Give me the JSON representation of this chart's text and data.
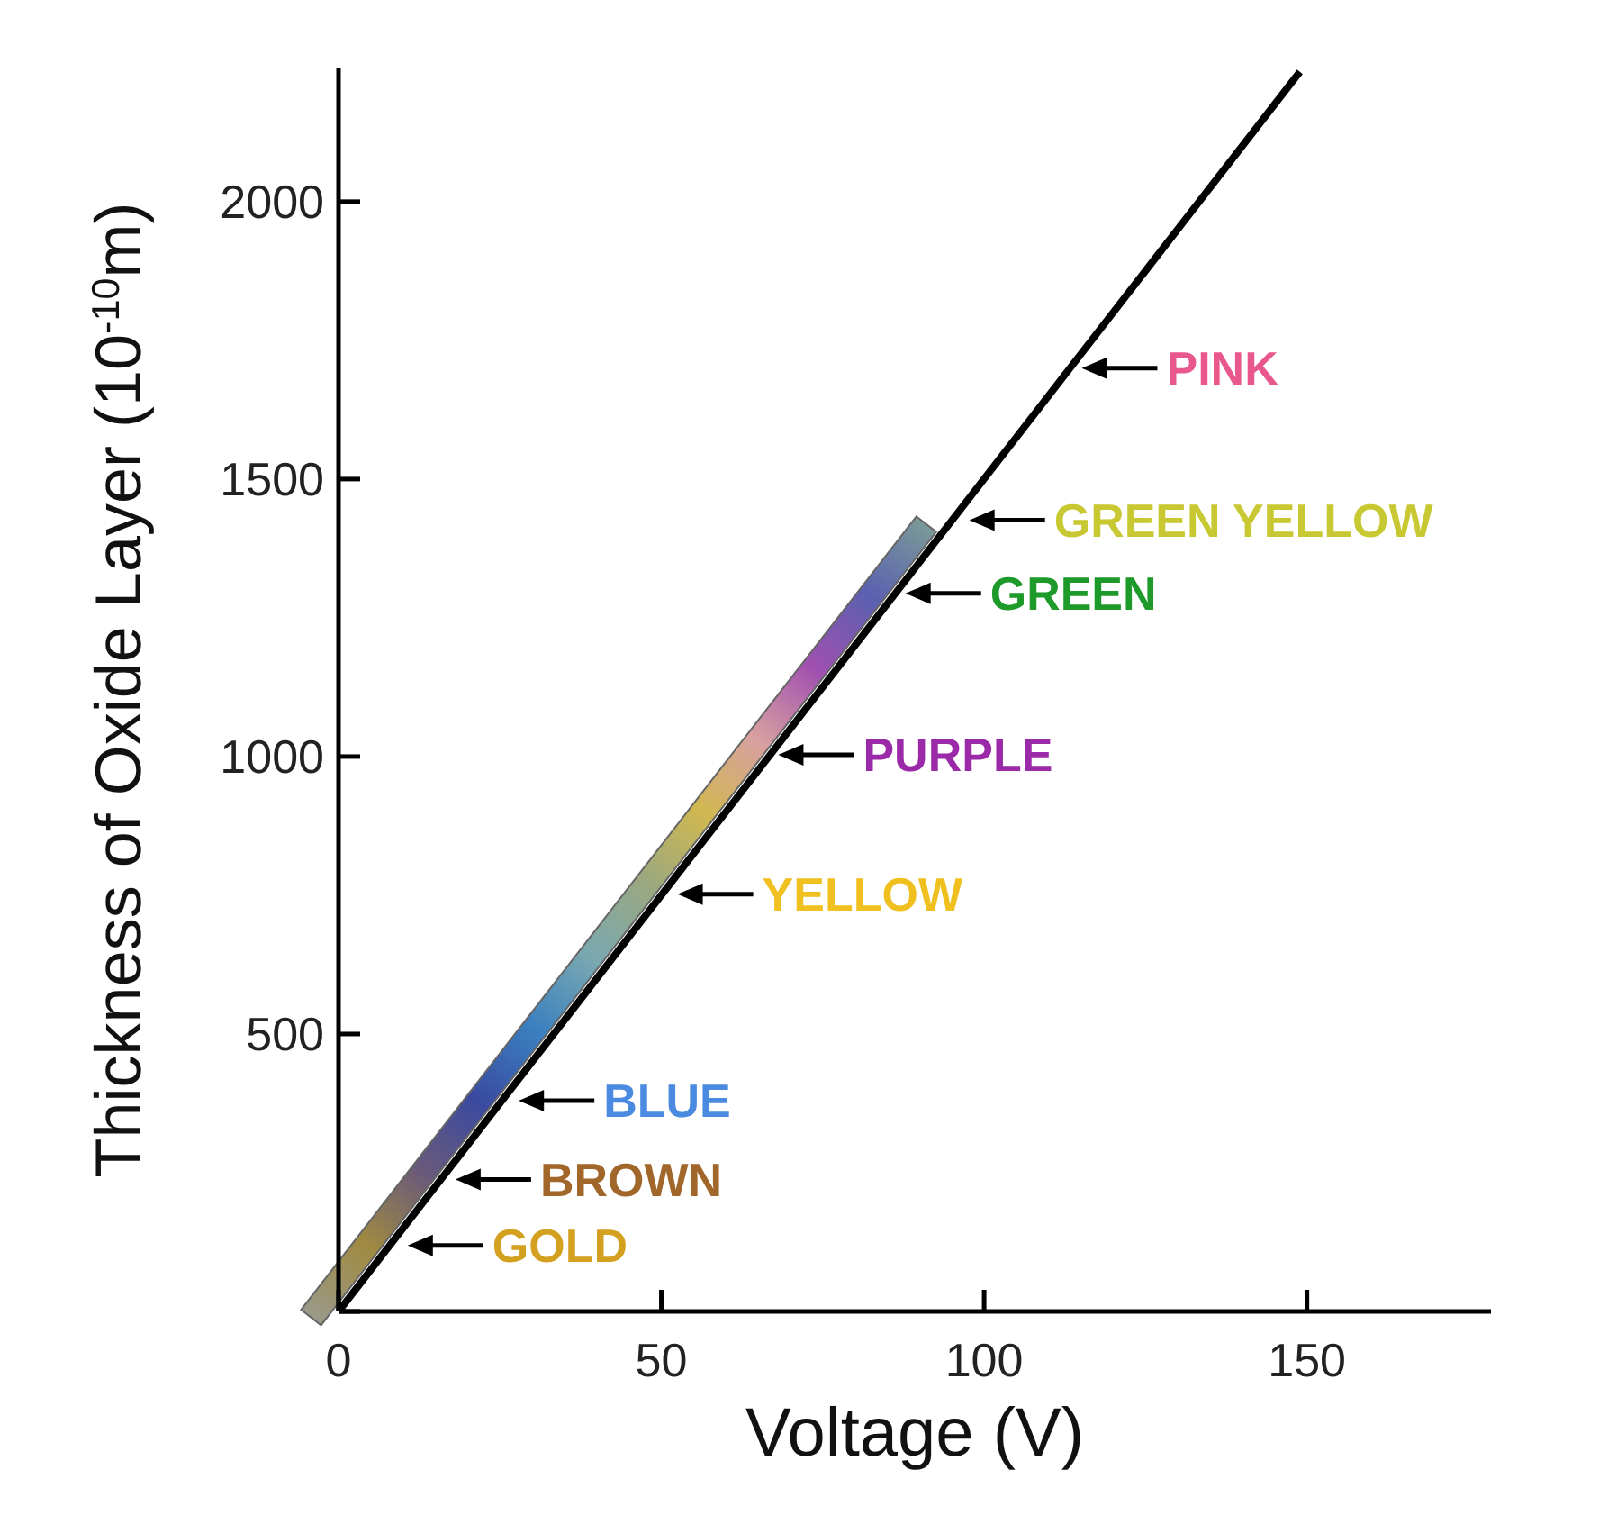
{
  "chart_data": {
    "type": "line",
    "xlabel": "Voltage (V)",
    "ylabel": "Thickness of Oxide Layer (10$^{-10}$m)",
    "x": [
      0,
      148.9
    ],
    "series": [
      {
        "color": "#000000",
        "values": [
          0,
          2234
        ]
      }
    ],
    "xlim": [
      0,
      178.5
    ],
    "ylim": [
      0,
      2240
    ],
    "xticks": [
      0,
      50,
      100,
      150
    ],
    "yticks": [
      {
        "value": 0,
        "label": null
      },
      500,
      1000,
      1500,
      2000
    ],
    "grid": false,
    "marker": "none",
    "line_style": "solid",
    "annotations": [
      {
        "text": "PINK",
        "x": 114,
        "y": 1700
      },
      {
        "text": "GREEN YELLOW",
        "x": 96.6,
        "y": 1426
      },
      {
        "text": "GREEN",
        "x": 86.7,
        "y": 1294
      },
      {
        "text": "PURPLE",
        "x": 67,
        "y": 1003
      },
      {
        "text": "YELLOW",
        "x": 51.4,
        "y": 752
      },
      {
        "text": "BLUE",
        "x": 26.8,
        "y": 380
      },
      {
        "text": "BROWN",
        "x": 17,
        "y": 238
      },
      {
        "text": "GOLD",
        "x": 9.6,
        "y": 119
      }
    ]
  }
}
